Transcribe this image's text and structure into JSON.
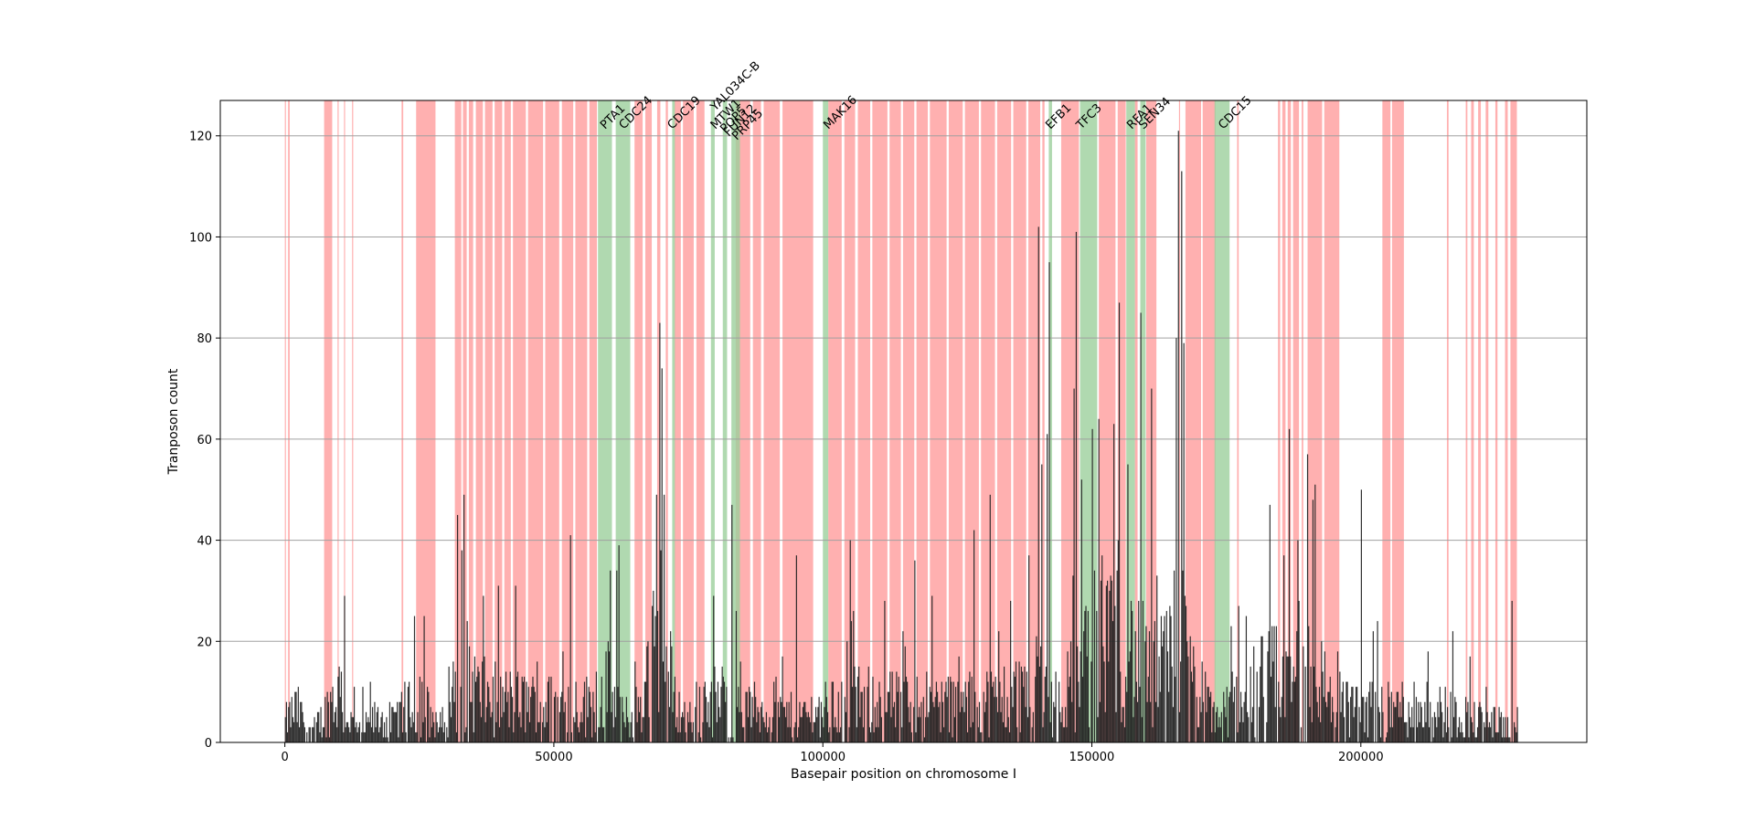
{
  "chart_data": {
    "type": "bar",
    "title": "",
    "xlabel": "Basepair position on chromosome I",
    "ylabel": "Tranposon count",
    "xlim": [
      -12000,
      242000
    ],
    "ylim": [
      0,
      127
    ],
    "grid": "horizontal",
    "x_ticks": [
      0,
      50000,
      100000,
      150000,
      200000
    ],
    "y_ticks": [
      0,
      20,
      40,
      60,
      80,
      100,
      120
    ],
    "colors": {
      "bars": "#1f1f1f",
      "nonessential_region": "#ff9c9c",
      "essential_region": "#9ccf9c",
      "grid": "#a0a0a0"
    },
    "bar_width_bp": 200,
    "bar_x_end": 229000,
    "profile": [
      [
        0,
        5
      ],
      [
        2000,
        8
      ],
      [
        5000,
        3
      ],
      [
        7000,
        6
      ],
      [
        8500,
        10
      ],
      [
        10000,
        12
      ],
      [
        12000,
        5
      ],
      [
        14000,
        3
      ],
      [
        17000,
        6
      ],
      [
        20000,
        5
      ],
      [
        23000,
        8
      ],
      [
        25000,
        12
      ],
      [
        27000,
        6
      ],
      [
        29000,
        4
      ],
      [
        31000,
        14
      ],
      [
        33000,
        18
      ],
      [
        36000,
        12
      ],
      [
        40000,
        10
      ],
      [
        44000,
        10
      ],
      [
        48000,
        9
      ],
      [
        52000,
        10
      ],
      [
        56000,
        9
      ],
      [
        58000,
        12
      ],
      [
        60000,
        14
      ],
      [
        62000,
        8
      ],
      [
        64000,
        5
      ],
      [
        66000,
        10
      ],
      [
        68000,
        20
      ],
      [
        70000,
        28
      ],
      [
        72000,
        12
      ],
      [
        74000,
        6
      ],
      [
        76000,
        8
      ],
      [
        78000,
        10
      ],
      [
        80000,
        10
      ],
      [
        82000,
        9
      ],
      [
        85000,
        8
      ],
      [
        90000,
        8
      ],
      [
        95000,
        6
      ],
      [
        100000,
        8
      ],
      [
        105000,
        10
      ],
      [
        110000,
        10
      ],
      [
        115000,
        9
      ],
      [
        120000,
        10
      ],
      [
        125000,
        9
      ],
      [
        130000,
        10
      ],
      [
        135000,
        11
      ],
      [
        138000,
        14
      ],
      [
        140000,
        18
      ],
      [
        142000,
        10
      ],
      [
        145000,
        12
      ],
      [
        148000,
        18
      ],
      [
        150000,
        22
      ],
      [
        152000,
        26
      ],
      [
        154000,
        30
      ],
      [
        156000,
        24
      ],
      [
        158000,
        20
      ],
      [
        160000,
        18
      ],
      [
        162000,
        16
      ],
      [
        164000,
        20
      ],
      [
        166000,
        28
      ],
      [
        168000,
        18
      ],
      [
        170000,
        12
      ],
      [
        172000,
        8
      ],
      [
        174000,
        6
      ],
      [
        176000,
        10
      ],
      [
        180000,
        14
      ],
      [
        184000,
        16
      ],
      [
        188000,
        18
      ],
      [
        190000,
        22
      ],
      [
        192000,
        16
      ],
      [
        195000,
        10
      ],
      [
        200000,
        9
      ],
      [
        205000,
        8
      ],
      [
        210000,
        9
      ],
      [
        215000,
        8
      ],
      [
        220000,
        6
      ],
      [
        225000,
        5
      ],
      [
        229000,
        3
      ]
    ],
    "peaks": [
      {
        "x": 32000,
        "y": 45
      },
      {
        "x": 32700,
        "y": 38
      },
      {
        "x": 11000,
        "y": 29
      },
      {
        "x": 24000,
        "y": 25
      },
      {
        "x": 53000,
        "y": 41
      },
      {
        "x": 62000,
        "y": 39
      },
      {
        "x": 61500,
        "y": 34
      },
      {
        "x": 69000,
        "y": 49
      },
      {
        "x": 69500,
        "y": 83
      },
      {
        "x": 70000,
        "y": 74
      },
      {
        "x": 70300,
        "y": 49
      },
      {
        "x": 83000,
        "y": 47
      },
      {
        "x": 95000,
        "y": 37
      },
      {
        "x": 105000,
        "y": 40
      },
      {
        "x": 117000,
        "y": 36
      },
      {
        "x": 128000,
        "y": 42
      },
      {
        "x": 131000,
        "y": 49
      },
      {
        "x": 140000,
        "y": 102
      },
      {
        "x": 140500,
        "y": 55
      },
      {
        "x": 142000,
        "y": 95
      },
      {
        "x": 141500,
        "y": 61
      },
      {
        "x": 146500,
        "y": 70
      },
      {
        "x": 147000,
        "y": 101
      },
      {
        "x": 148000,
        "y": 52
      },
      {
        "x": 150000,
        "y": 62
      },
      {
        "x": 155000,
        "y": 87
      },
      {
        "x": 156500,
        "y": 55
      },
      {
        "x": 159000,
        "y": 85
      },
      {
        "x": 161000,
        "y": 70
      },
      {
        "x": 165500,
        "y": 80
      },
      {
        "x": 166000,
        "y": 121
      },
      {
        "x": 166500,
        "y": 113
      },
      {
        "x": 167000,
        "y": 79
      },
      {
        "x": 183000,
        "y": 47
      },
      {
        "x": 186500,
        "y": 62
      },
      {
        "x": 190000,
        "y": 57
      },
      {
        "x": 191000,
        "y": 48
      },
      {
        "x": 200000,
        "y": 50
      },
      {
        "x": 217000,
        "y": 22
      },
      {
        "x": 228000,
        "y": 28
      }
    ],
    "nonessential_regions": [
      [
        0,
        200
      ],
      [
        600,
        900
      ],
      [
        7300,
        8800
      ],
      [
        9800,
        10000
      ],
      [
        11000,
        11200
      ],
      [
        12500,
        12700
      ],
      [
        21700,
        22000
      ],
      [
        24400,
        28000
      ],
      [
        31600,
        32800
      ],
      [
        33100,
        33800
      ],
      [
        34200,
        35000
      ],
      [
        35500,
        36800
      ],
      [
        37200,
        38600
      ],
      [
        39000,
        40400
      ],
      [
        40800,
        42000
      ],
      [
        42400,
        44800
      ],
      [
        45200,
        48000
      ],
      [
        48400,
        51000
      ],
      [
        51500,
        53600
      ],
      [
        54000,
        56200
      ],
      [
        56600,
        58000
      ],
      [
        65000,
        66500
      ],
      [
        67000,
        68200
      ],
      [
        69200,
        69800
      ],
      [
        70800,
        71200
      ],
      [
        72400,
        73600
      ],
      [
        74000,
        76000
      ],
      [
        76500,
        78000
      ],
      [
        83800,
        86500
      ],
      [
        87000,
        88500
      ],
      [
        89000,
        92000
      ],
      [
        92500,
        98200
      ],
      [
        101000,
        103500
      ],
      [
        104000,
        106000
      ],
      [
        106500,
        108800
      ],
      [
        109200,
        112000
      ],
      [
        112400,
        114500
      ],
      [
        114900,
        117000
      ],
      [
        117400,
        119500
      ],
      [
        119900,
        123000
      ],
      [
        123400,
        126000
      ],
      [
        126400,
        129000
      ],
      [
        129400,
        132000
      ],
      [
        132400,
        135000
      ],
      [
        135400,
        137800
      ],
      [
        138200,
        140400
      ],
      [
        140800,
        141200
      ],
      [
        144300,
        147600
      ],
      [
        151300,
        154400
      ],
      [
        154800,
        156300
      ],
      [
        158000,
        158500
      ],
      [
        160100,
        162000
      ],
      [
        166200,
        166400
      ],
      [
        167400,
        170300
      ],
      [
        170600,
        173000
      ],
      [
        177000,
        177300
      ],
      [
        184600,
        185000
      ],
      [
        185400,
        186000
      ],
      [
        186400,
        187000
      ],
      [
        187400,
        188500
      ],
      [
        189000,
        189300
      ],
      [
        190100,
        192800
      ],
      [
        193200,
        196000
      ],
      [
        204000,
        205500
      ],
      [
        205800,
        208000
      ],
      [
        216000,
        216300
      ],
      [
        219500,
        219800
      ],
      [
        220500,
        221000
      ],
      [
        221800,
        222300
      ],
      [
        223200,
        223700
      ],
      [
        225000,
        225400
      ],
      [
        226800,
        227300
      ],
      [
        227800,
        229000
      ]
    ],
    "essential_regions": [
      [
        58200,
        60800
      ],
      [
        61500,
        64200
      ],
      [
        72000,
        72500
      ],
      [
        79200,
        79900
      ],
      [
        81400,
        82200
      ],
      [
        83000,
        84600
      ],
      [
        100000,
        101000
      ],
      [
        142000,
        142600
      ],
      [
        147800,
        151000
      ],
      [
        156400,
        158000
      ],
      [
        159000,
        160000
      ],
      [
        172800,
        175600
      ]
    ],
    "gene_labels": [
      {
        "text": "PTA1",
        "x": 59500
      },
      {
        "text": "CDC24",
        "x": 63000
      },
      {
        "text": "CDC19",
        "x": 72000
      },
      {
        "text": "YAL034C-B",
        "x": 80000
      },
      {
        "text": "MTW1",
        "x": 80000
      },
      {
        "text": "POP5",
        "x": 81800
      },
      {
        "text": "FUN12",
        "x": 82500
      },
      {
        "text": "PRP45",
        "x": 84000
      },
      {
        "text": "MAK16",
        "x": 101000
      },
      {
        "text": "EFB1",
        "x": 142300
      },
      {
        "text": "TFC3",
        "x": 148000
      },
      {
        "text": "RFA1",
        "x": 157400
      },
      {
        "text": "SEN34",
        "x": 159600
      },
      {
        "text": "CDC15",
        "x": 174400
      }
    ]
  }
}
